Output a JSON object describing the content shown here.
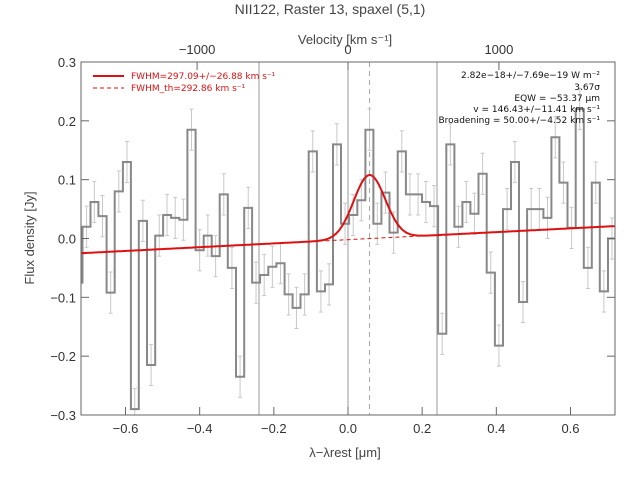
{
  "chart_data": {
    "type": "line",
    "title": "NII122, Raster 13, spaxel (5,1)",
    "xlabel": "λ−λrest [μm]",
    "ylabel": "Flux density [Jy]",
    "x2label": "Velocity [km s⁻¹]",
    "xlim": [
      -0.72,
      0.72
    ],
    "ylim": [
      -0.3,
      0.3
    ],
    "x_ticks": [
      -0.6,
      -0.4,
      -0.2,
      0.0,
      0.2,
      0.4,
      0.6
    ],
    "x_tick_labels": [
      "−0.6",
      "−0.4",
      "−0.2",
      "0.0",
      "0.2",
      "0.4",
      "0.6"
    ],
    "y_ticks": [
      -0.3,
      -0.2,
      -0.1,
      0.0,
      0.1,
      0.2,
      0.3
    ],
    "y_tick_labels": [
      "−0.3",
      "−0.2",
      "−0.1",
      "0.0",
      "0.1",
      "0.2",
      "0.3"
    ],
    "x2_ticks": [
      -1000,
      0,
      1000
    ],
    "x2_tick_labels": [
      "−1000",
      "0",
      "1000"
    ],
    "vertical_lines": [
      -0.24,
      0.0,
      0.24
    ],
    "center_dashed_line": 0.058,
    "colors": {
      "data": "#888888",
      "fit": "#dd1111",
      "grid": "#999999"
    },
    "data_steps": {
      "x": [
        -0.727,
        -0.705,
        -0.684,
        -0.662,
        -0.64,
        -0.618,
        -0.596,
        -0.575,
        -0.553,
        -0.531,
        -0.509,
        -0.488,
        -0.466,
        -0.444,
        -0.422,
        -0.4,
        -0.378,
        -0.357,
        -0.335,
        -0.313,
        -0.291,
        -0.269,
        -0.248,
        -0.226,
        -0.204,
        -0.182,
        -0.16,
        -0.139,
        -0.117,
        -0.095,
        -0.073,
        -0.051,
        -0.03,
        -0.008,
        0.014,
        0.036,
        0.058,
        0.079,
        0.101,
        0.123,
        0.145,
        0.167,
        0.189,
        0.21,
        0.232,
        0.254,
        0.276,
        0.298,
        0.319,
        0.341,
        0.363,
        0.385,
        0.407,
        0.429,
        0.45,
        0.472,
        0.494,
        0.516,
        0.538,
        0.559,
        0.581,
        0.603,
        0.625,
        0.647,
        0.668,
        0.69,
        0.712
      ],
      "y": [
        -0.075,
        0.02,
        0.062,
        0.038,
        -0.092,
        0.08,
        0.13,
        -0.29,
        0.03,
        -0.215,
        0.005,
        0.04,
        0.035,
        0.032,
        0.185,
        -0.02,
        0.005,
        -0.03,
        0.075,
        -0.05,
        -0.235,
        0.052,
        -0.075,
        -0.062,
        -0.048,
        -0.042,
        -0.095,
        -0.118,
        -0.095,
        0.148,
        -0.09,
        -0.078,
        0.16,
        0.025,
        0.04,
        0.065,
        0.185,
        0.025,
        0.078,
        0.01,
        0.148,
        0.075,
        0.075,
        0.062,
        0.055,
        -0.162,
        0.16,
        0.02,
        0.062,
        0.042,
        0.11,
        -0.058,
        -0.182,
        0.05,
        0.13,
        -0.108,
        0.05,
        0.05,
        0.035,
        0.172,
        0.095,
        0.018,
        0.22,
        -0.05,
        0.095,
        -0.09,
        0.0
      ],
      "err": 0.035
    },
    "series": [
      {
        "name": "FWHM=297.09+/−26.88 km s⁻¹",
        "style": "solid",
        "continuum": {
          "x0": -0.72,
          "y0": -0.025,
          "slope": 0.032
        },
        "gaussian": {
          "center": 0.058,
          "amplitude": 0.108,
          "fwhm_um": 0.1
        }
      },
      {
        "name": "FWHM_th=292.86 km s⁻¹",
        "style": "dashed"
      }
    ],
    "annotations": [
      "2.82e−18+/−7.69e−19 W m⁻²",
      "3.67σ",
      "EQW = −53.37 μm",
      "v = 146.43+/−11.41 km s⁻¹",
      "Broadening = 50.00+/−4.52 km s⁻¹"
    ]
  }
}
